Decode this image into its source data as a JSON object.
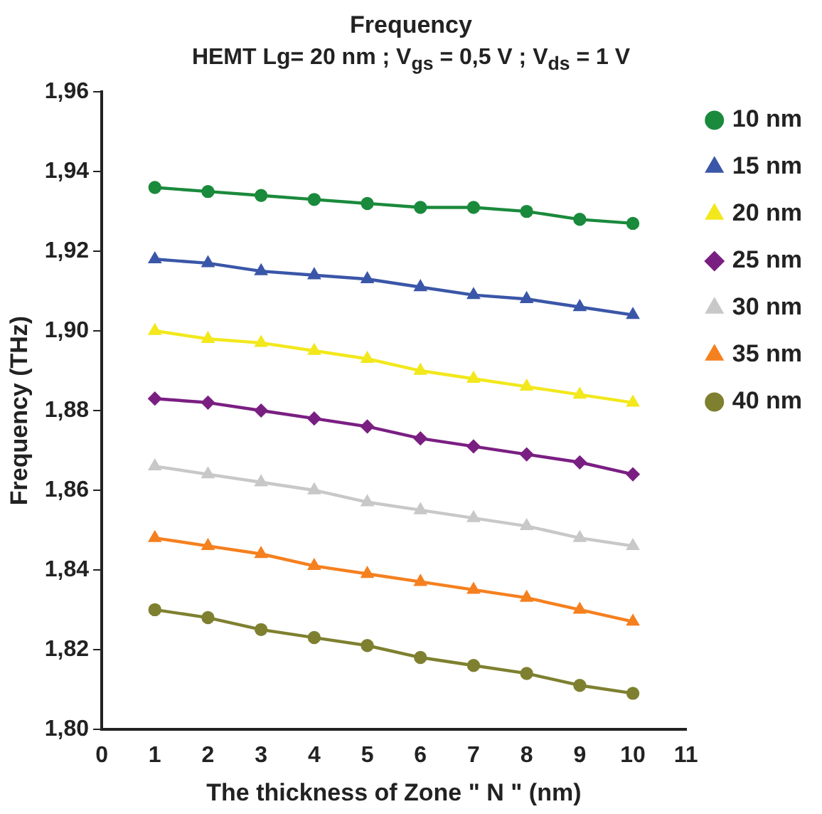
{
  "chart_data": {
    "type": "line",
    "title": "Frequency",
    "subtitle": "HEMT Lg= 20 nm ; V$_{gs}$ = 0,5 V ; V$_{ds}$ = 1 V",
    "xlabel": "The thickness of Zone \" N \" (nm)",
    "ylabel": "Frequency (THz)",
    "x": [
      1,
      2,
      3,
      4,
      5,
      6,
      7,
      8,
      9,
      10
    ],
    "series": [
      {
        "name": "10 nm",
        "color": "#1a8a3c",
        "marker": "circle",
        "values": [
          1.936,
          1.935,
          1.934,
          1.933,
          1.932,
          1.931,
          1.931,
          1.93,
          1.928,
          1.927
        ]
      },
      {
        "name": "15 nm",
        "color": "#3a56a8",
        "marker": "triangle",
        "values": [
          1.918,
          1.917,
          1.915,
          1.914,
          1.913,
          1.911,
          1.909,
          1.908,
          1.906,
          1.904
        ]
      },
      {
        "name": "20 nm",
        "color": "#f2e81c",
        "marker": "triangle",
        "values": [
          1.9,
          1.898,
          1.897,
          1.895,
          1.893,
          1.89,
          1.888,
          1.886,
          1.884,
          1.882
        ]
      },
      {
        "name": "25 nm",
        "color": "#7a1f82",
        "marker": "diamond",
        "values": [
          1.883,
          1.882,
          1.88,
          1.878,
          1.876,
          1.873,
          1.871,
          1.869,
          1.867,
          1.864
        ]
      },
      {
        "name": "30 nm",
        "color": "#c8c8c8",
        "marker": "triangle",
        "values": [
          1.866,
          1.864,
          1.862,
          1.86,
          1.857,
          1.855,
          1.853,
          1.851,
          1.848,
          1.846
        ]
      },
      {
        "name": "35 nm",
        "color": "#f5801f",
        "marker": "triangle",
        "values": [
          1.848,
          1.846,
          1.844,
          1.841,
          1.839,
          1.837,
          1.835,
          1.833,
          1.83,
          1.827
        ]
      },
      {
        "name": "40 nm",
        "color": "#7e8030",
        "marker": "circle",
        "values": [
          1.83,
          1.828,
          1.825,
          1.823,
          1.821,
          1.818,
          1.816,
          1.814,
          1.811,
          1.809
        ]
      }
    ],
    "xlim": [
      0,
      11
    ],
    "xticks": [
      0,
      1,
      2,
      3,
      4,
      5,
      6,
      7,
      8,
      9,
      10,
      11
    ],
    "ylim": [
      1.8,
      1.96
    ],
    "yticks": [
      {
        "value": 1.8,
        "label": "1,80"
      },
      {
        "value": 1.82,
        "label": "1,82"
      },
      {
        "value": 1.84,
        "label": "1,84"
      },
      {
        "value": 1.86,
        "label": "1,86"
      },
      {
        "value": 1.88,
        "label": "1,88"
      },
      {
        "value": 1.9,
        "label": "1,90"
      },
      {
        "value": 1.92,
        "label": "1,92"
      },
      {
        "value": 1.94,
        "label": "1,94"
      },
      {
        "value": 1.96,
        "label": "1,96"
      }
    ],
    "grid": false,
    "legend": "top right",
    "line_style": "solid"
  }
}
